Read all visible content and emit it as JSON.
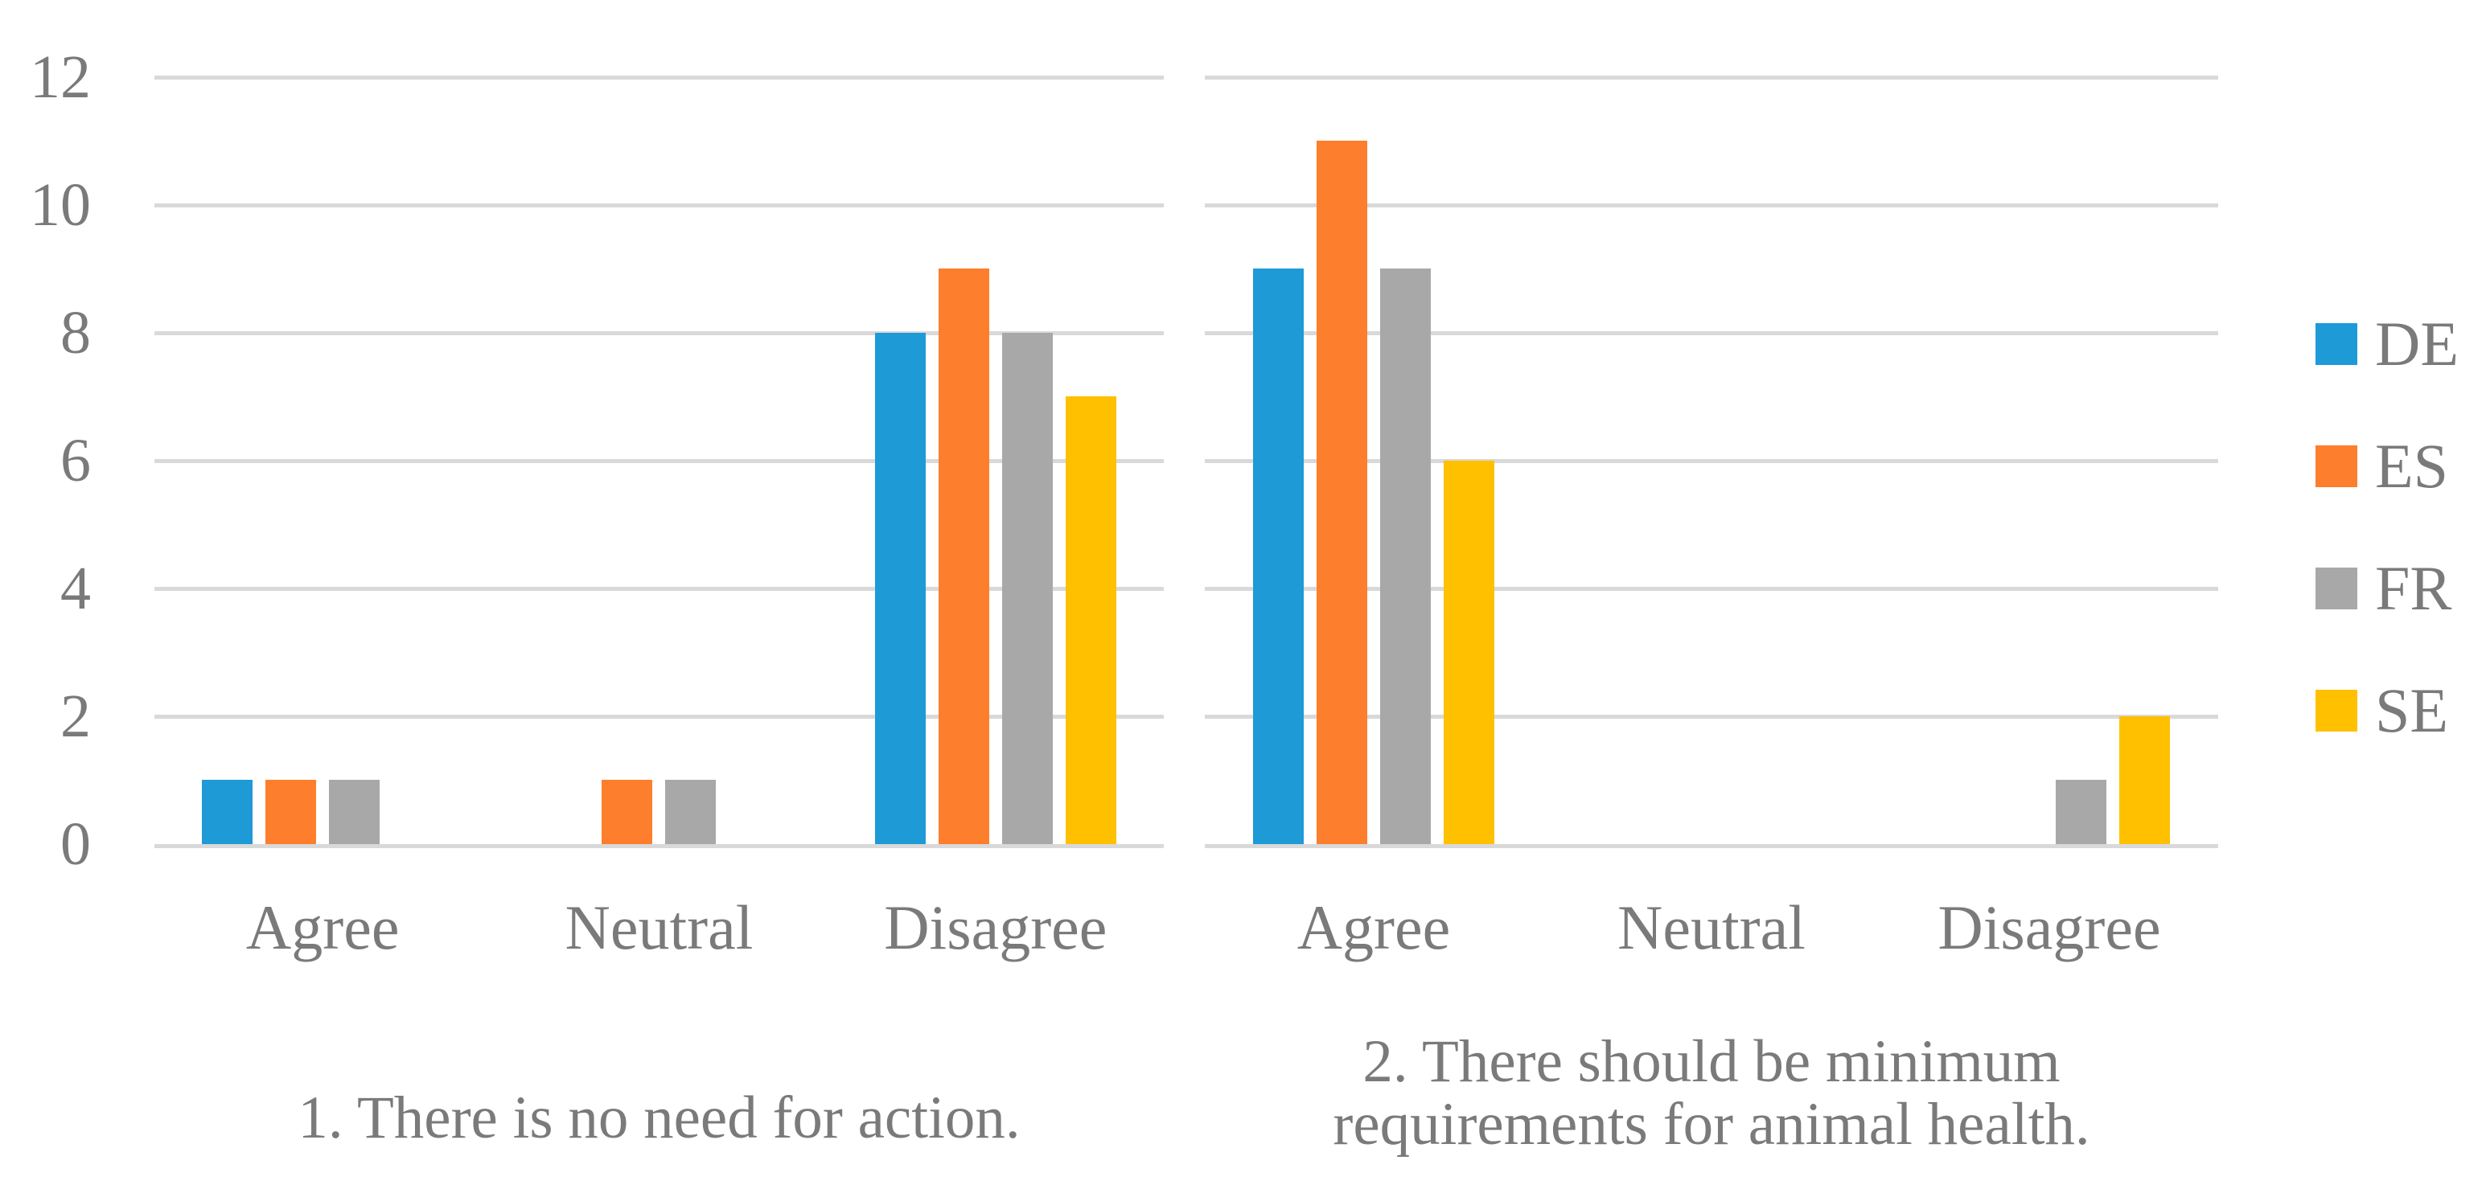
{
  "chart_data": {
    "type": "bar",
    "title": "",
    "grid": true,
    "legend_position": "right",
    "text_color": "#7A7A7A",
    "gridline_color": "#D9D9D9",
    "y_axis": {
      "min": 0,
      "max": 12,
      "tick_step": 2,
      "ticks": [
        0,
        2,
        4,
        6,
        8,
        10,
        12
      ]
    },
    "categories": [
      "Agree",
      "Neutral",
      "Disagree"
    ],
    "series": [
      {
        "name": "DE",
        "color": "#1E9AD7"
      },
      {
        "name": "ES",
        "color": "#FD7E2C"
      },
      {
        "name": "FR",
        "color": "#A8A8A8"
      },
      {
        "name": "SE",
        "color": "#FFC000"
      }
    ],
    "panels": [
      {
        "question_lines": [
          "1. There is no need for action."
        ],
        "values": [
          [
            1,
            1,
            1,
            0
          ],
          [
            0,
            1,
            1,
            0
          ],
          [
            8,
            9,
            8,
            7
          ]
        ]
      },
      {
        "question_lines": [
          "2. There should be minimum",
          "requirements for animal health."
        ],
        "values": [
          [
            9,
            11,
            9,
            6
          ],
          [
            0,
            0,
            0,
            0
          ],
          [
            0,
            0,
            1,
            2
          ]
        ]
      }
    ]
  }
}
